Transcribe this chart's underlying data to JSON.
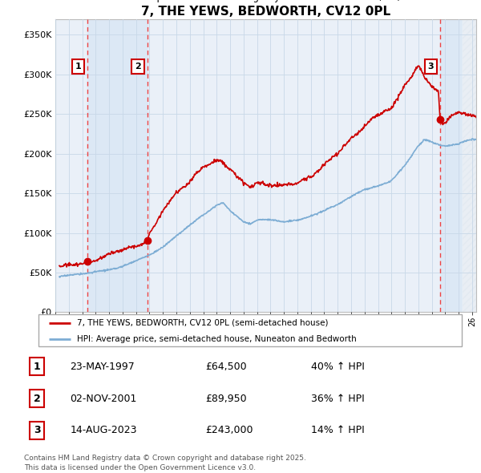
{
  "title": "7, THE YEWS, BEDWORTH, CV12 0PL",
  "subtitle": "Price paid vs. HM Land Registry's House Price Index (HPI)",
  "ylim": [
    0,
    370000
  ],
  "yticks": [
    0,
    50000,
    100000,
    150000,
    200000,
    250000,
    300000,
    350000
  ],
  "ytick_labels": [
    "£0",
    "£50K",
    "£100K",
    "£150K",
    "£200K",
    "£250K",
    "£300K",
    "£350K"
  ],
  "xlim_start": 1995.3,
  "xlim_end": 2026.3,
  "bg_color": "#eaf0f8",
  "plot_bg_color": "#ffffff",
  "grid_color": "#c8d8e8",
  "sale_color": "#cc0000",
  "hpi_line_color": "#7dadd4",
  "dashed_line_color": "#ee4444",
  "marker_color": "#cc0000",
  "sale_points": [
    {
      "year": 1997.39,
      "price": 64500,
      "label": "1"
    },
    {
      "year": 2001.84,
      "price": 89950,
      "label": "2"
    },
    {
      "year": 2023.62,
      "price": 243000,
      "label": "3"
    }
  ],
  "shade_color": "#dce8f5",
  "hatch_color": "#cccccc",
  "legend_entries": [
    "7, THE YEWS, BEDWORTH, CV12 0PL (semi-detached house)",
    "HPI: Average price, semi-detached house, Nuneaton and Bedworth"
  ],
  "table_rows": [
    {
      "num": "1",
      "date": "23-MAY-1997",
      "price": "£64,500",
      "change": "40% ↑ HPI"
    },
    {
      "num": "2",
      "date": "02-NOV-2001",
      "price": "£89,950",
      "change": "36% ↑ HPI"
    },
    {
      "num": "3",
      "date": "14-AUG-2023",
      "price": "£243,000",
      "change": "14% ↑ HPI"
    }
  ],
  "footnote": "Contains HM Land Registry data © Crown copyright and database right 2025.\nThis data is licensed under the Open Government Licence v3.0."
}
